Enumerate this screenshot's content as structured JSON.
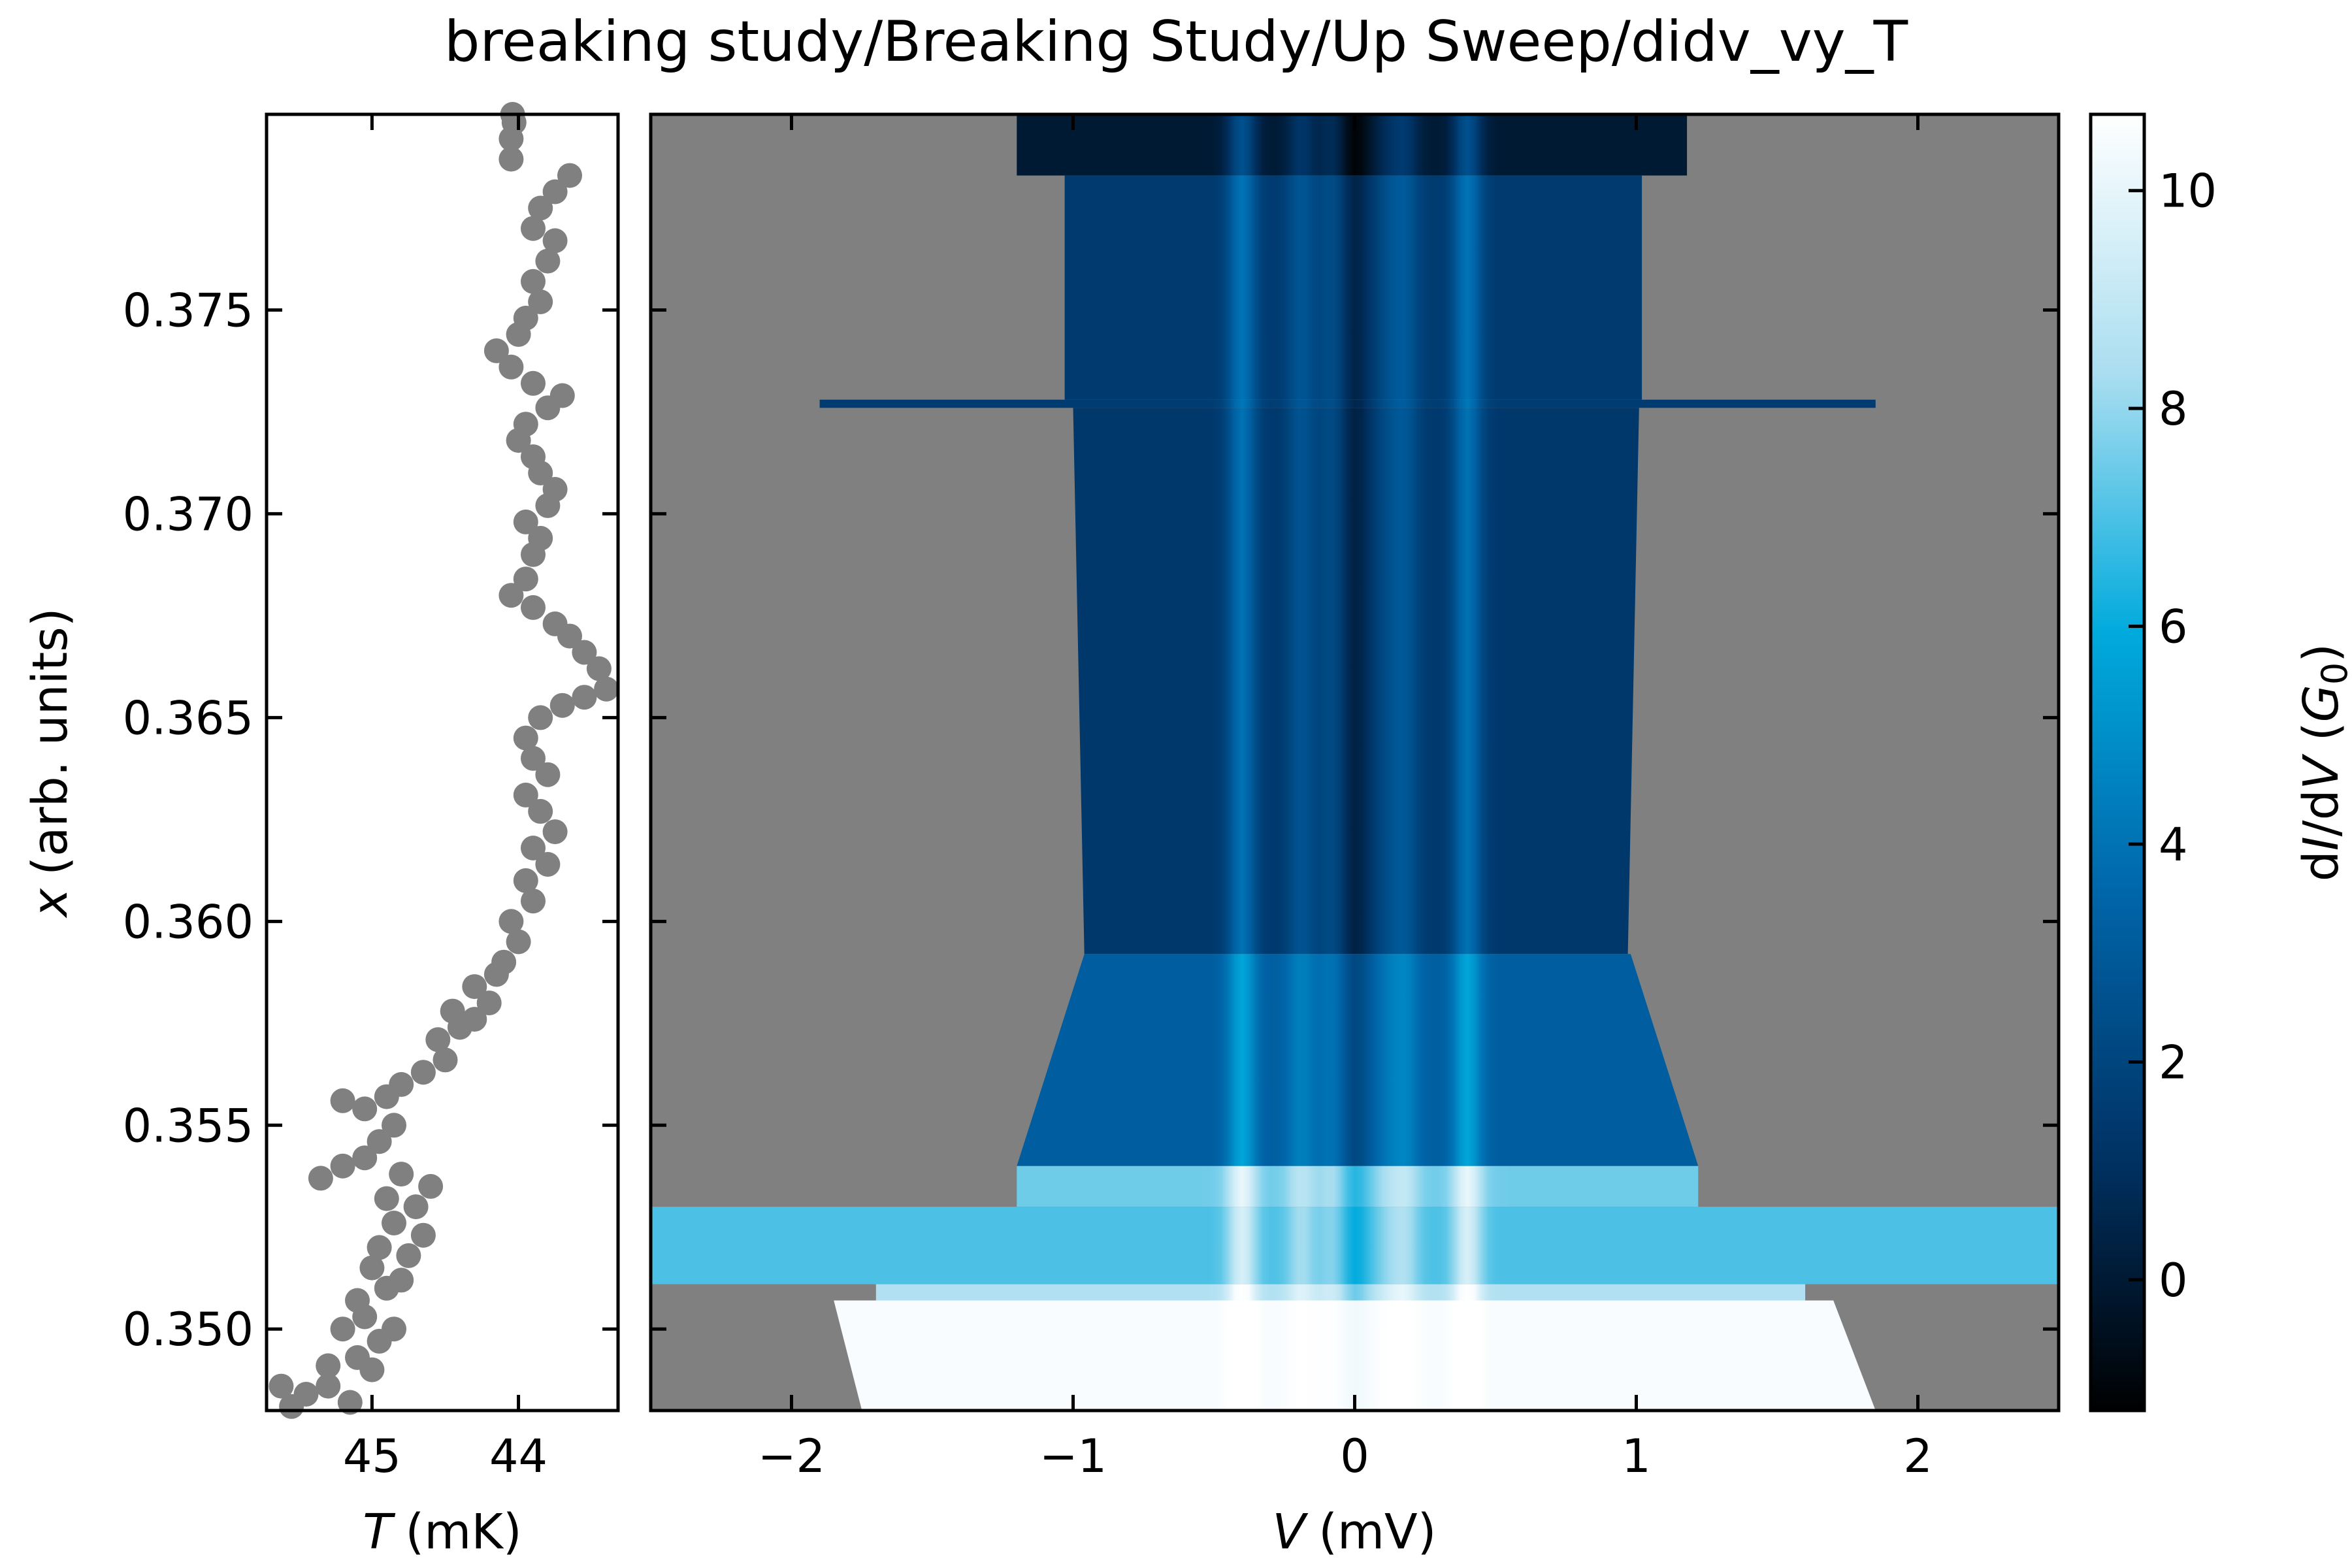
{
  "title": "breaking study/Breaking Study/Up Sweep/didv_vy_T",
  "chart_data": [
    {
      "type": "scatter",
      "panel": "left",
      "xlabel": "T (mK)",
      "xlabel_var": "T",
      "xlabel_unit": "(mK)",
      "ylabel": "x (arb. units)",
      "ylabel_var": "x",
      "ylabel_unit": "(arb. units)",
      "xlim": [
        45.72,
        43.32
      ],
      "ylim": [
        0.348,
        0.3798
      ],
      "xticks": [
        45,
        44
      ],
      "xticklabels": [
        "45",
        "44"
      ],
      "yticks": [
        0.35,
        0.355,
        0.36,
        0.365,
        0.37,
        0.375
      ],
      "yticklabels": [
        "0.350",
        "0.355",
        "0.360",
        "0.365",
        "0.370",
        "0.375"
      ],
      "marker_color": "#808080",
      "points": [
        [
          45.55,
          0.3481
        ],
        [
          45.62,
          0.3486
        ],
        [
          45.45,
          0.3484
        ],
        [
          45.3,
          0.3486
        ],
        [
          45.15,
          0.3482
        ],
        [
          45.3,
          0.3491
        ],
        [
          45.1,
          0.3493
        ],
        [
          45.0,
          0.349
        ],
        [
          44.95,
          0.3497
        ],
        [
          45.2,
          0.35
        ],
        [
          45.05,
          0.3503
        ],
        [
          44.85,
          0.35
        ],
        [
          45.1,
          0.3507
        ],
        [
          44.9,
          0.351
        ],
        [
          45.0,
          0.3515
        ],
        [
          44.8,
          0.3512
        ],
        [
          44.95,
          0.352
        ],
        [
          44.75,
          0.3518
        ],
        [
          44.85,
          0.3526
        ],
        [
          44.65,
          0.3523
        ],
        [
          44.9,
          0.3532
        ],
        [
          44.7,
          0.353
        ],
        [
          44.8,
          0.3538
        ],
        [
          44.6,
          0.3535
        ],
        [
          45.35,
          0.3537
        ],
        [
          45.2,
          0.354
        ],
        [
          45.05,
          0.3542
        ],
        [
          44.95,
          0.3546
        ],
        [
          44.85,
          0.355
        ],
        [
          45.05,
          0.3554
        ],
        [
          44.9,
          0.3557
        ],
        [
          45.2,
          0.3556
        ],
        [
          44.8,
          0.356
        ],
        [
          44.65,
          0.3563
        ],
        [
          44.5,
          0.3566
        ],
        [
          44.55,
          0.3571
        ],
        [
          44.4,
          0.3574
        ],
        [
          44.45,
          0.3578
        ],
        [
          44.3,
          0.3576
        ],
        [
          44.2,
          0.358
        ],
        [
          44.3,
          0.3584
        ],
        [
          44.15,
          0.3587
        ],
        [
          44.1,
          0.359
        ],
        [
          44.0,
          0.3595
        ],
        [
          44.05,
          0.36
        ],
        [
          43.9,
          0.3605
        ],
        [
          43.95,
          0.361
        ],
        [
          43.8,
          0.3614
        ],
        [
          43.9,
          0.3618
        ],
        [
          43.75,
          0.3622
        ],
        [
          43.85,
          0.3627
        ],
        [
          43.95,
          0.3631
        ],
        [
          43.8,
          0.3636
        ],
        [
          43.9,
          0.364
        ],
        [
          43.95,
          0.3645
        ],
        [
          43.85,
          0.365
        ],
        [
          43.7,
          0.3653
        ],
        [
          43.55,
          0.3655
        ],
        [
          43.4,
          0.3657
        ],
        [
          43.45,
          0.3662
        ],
        [
          43.55,
          0.3666
        ],
        [
          43.65,
          0.367
        ],
        [
          43.75,
          0.3673
        ],
        [
          43.9,
          0.3677
        ],
        [
          44.05,
          0.368
        ],
        [
          43.95,
          0.3684
        ],
        [
          43.9,
          0.369
        ],
        [
          43.85,
          0.3694
        ],
        [
          43.95,
          0.3698
        ],
        [
          43.8,
          0.3702
        ],
        [
          43.75,
          0.3706
        ],
        [
          43.85,
          0.371
        ],
        [
          43.9,
          0.3714
        ],
        [
          44.0,
          0.3718
        ],
        [
          43.95,
          0.3722
        ],
        [
          43.8,
          0.3726
        ],
        [
          43.7,
          0.3729
        ],
        [
          43.9,
          0.3732
        ],
        [
          44.05,
          0.3736
        ],
        [
          44.15,
          0.374
        ],
        [
          44.0,
          0.3744
        ],
        [
          43.95,
          0.3748
        ],
        [
          43.85,
          0.3752
        ],
        [
          43.9,
          0.3757
        ],
        [
          43.8,
          0.3762
        ],
        [
          43.75,
          0.3767
        ],
        [
          43.9,
          0.377
        ],
        [
          43.85,
          0.3775
        ],
        [
          43.75,
          0.3779
        ],
        [
          43.65,
          0.3783
        ],
        [
          44.05,
          0.3787
        ],
        [
          44.05,
          0.3792
        ],
        [
          44.03,
          0.3796
        ],
        [
          44.04,
          0.3798
        ]
      ]
    },
    {
      "type": "heatmap",
      "panel": "right",
      "xlabel": "V (mV)",
      "xlabel_var": "V",
      "xlabel_unit": "(mV)",
      "xlim": [
        -2.5,
        2.5
      ],
      "ylim": [
        0.348,
        0.3798
      ],
      "xticks": [
        -2,
        -1,
        0,
        1,
        2
      ],
      "xticklabels": [
        "−2",
        "−1",
        "0",
        "1",
        "2"
      ],
      "background_color": "#808080",
      "bands": [
        {
          "y": [
            0.3798,
            0.3783
          ],
          "v_left": [
            -1.2,
            -1.2
          ],
          "v_right": [
            1.18,
            1.18
          ],
          "g": 0.0
        },
        {
          "y": [
            0.3783,
            0.3728
          ],
          "v_left": [
            -1.03,
            -1.03
          ],
          "v_right": [
            1.02,
            1.02
          ],
          "g": 1.5
        },
        {
          "y": [
            0.3728,
            0.3726
          ],
          "v_left": [
            -1.9,
            -1.9
          ],
          "v_right": [
            1.85,
            1.85
          ],
          "g": 1.6
        },
        {
          "y": [
            0.3726,
            0.3592
          ],
          "v_left": [
            -1.0,
            -0.96
          ],
          "v_right": [
            1.01,
            0.97
          ],
          "g": 1.4
        },
        {
          "y": [
            0.3592,
            0.354
          ],
          "v_left": [
            -0.96,
            -1.2
          ],
          "v_right": [
            0.98,
            1.22
          ],
          "g": 3.2
        },
        {
          "y": [
            0.354,
            0.353
          ],
          "v_left": [
            -1.2,
            -1.2
          ],
          "v_right": [
            1.22,
            1.22
          ],
          "g": 7.5
        },
        {
          "y": [
            0.353,
            0.3511
          ],
          "v_left": [
            -2.5,
            -2.5
          ],
          "v_right": [
            2.5,
            2.5
          ],
          "g": 7.0
        },
        {
          "y": [
            0.3511,
            0.3507
          ],
          "v_left": [
            -1.7,
            -1.7
          ],
          "v_right": [
            1.6,
            1.6
          ],
          "g": 8.5
        },
        {
          "y": [
            0.3507,
            0.348
          ],
          "v_left": [
            -1.85,
            -1.75
          ],
          "v_right": [
            1.7,
            1.85
          ],
          "g": 10.5
        }
      ],
      "peaks": [
        {
          "v": -0.4,
          "dg": 2.6
        },
        {
          "v": -0.19,
          "dg": 1.3
        },
        {
          "v": -0.08,
          "dg": 0.9
        },
        {
          "v": 0.0,
          "dg": -1.1
        },
        {
          "v": 0.12,
          "dg": 0.8
        },
        {
          "v": 0.18,
          "dg": 1.3
        },
        {
          "v": 0.4,
          "dg": 2.6
        }
      ]
    },
    {
      "type": "colorbar",
      "label": "dI/dV (G0)",
      "label_parts": [
        "d",
        "I",
        "/d",
        "V",
        " (",
        "G",
        "0",
        ")"
      ],
      "range": [
        -1.2,
        10.7
      ],
      "ticks": [
        0,
        2,
        4,
        6,
        8,
        10
      ],
      "ticklabels": [
        "0",
        "2",
        "4",
        "6",
        "8",
        "10"
      ],
      "colors": [
        "#000000",
        "#003366",
        "#0066aa",
        "#00aadd",
        "#aadef0",
        "#ffffff"
      ]
    }
  ]
}
